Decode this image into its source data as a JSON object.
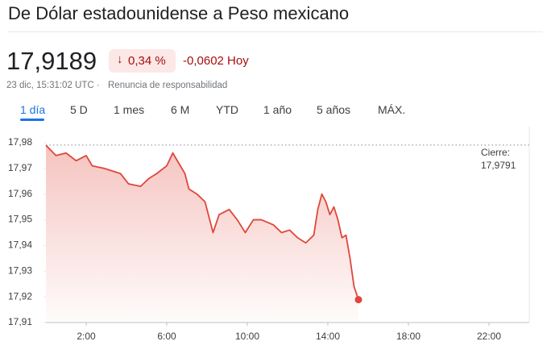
{
  "header": {
    "title": "De Dólar estadounidense a Peso mexicano",
    "price": "17,9189",
    "change_percent": "0,34 %",
    "change_value": "-0,0602 Hoy",
    "timestamp": "23 dic, 15:31:02 UTC ·",
    "disclaimer": "Renuncia de responsabilidad"
  },
  "tabs": [
    "1 día",
    "5 D",
    "1 mes",
    "6 M",
    "YTD",
    "1 año",
    "5 años",
    "MÁX."
  ],
  "chart_data": {
    "type": "line",
    "color": "#e0463a",
    "x": [
      0,
      0.5,
      1.0,
      1.5,
      2.0,
      2.3,
      2.9,
      3.7,
      4.1,
      4.7,
      5.1,
      5.5,
      6.0,
      6.3,
      6.6,
      6.9,
      7.1,
      7.5,
      7.9,
      8.1,
      8.3,
      8.6,
      9.1,
      9.5,
      9.9,
      10.3,
      10.7,
      11.3,
      11.7,
      12.1,
      12.5,
      12.9,
      13.3,
      13.5,
      13.7,
      13.9,
      14.1,
      14.3,
      14.5,
      14.7,
      14.9,
      15.1,
      15.3,
      15.52
    ],
    "values": [
      17.979,
      17.975,
      17.976,
      17.973,
      17.975,
      17.971,
      17.97,
      17.968,
      17.964,
      17.963,
      17.966,
      17.968,
      17.971,
      17.976,
      17.972,
      17.968,
      17.962,
      17.96,
      17.957,
      17.951,
      17.945,
      17.952,
      17.954,
      17.95,
      17.945,
      17.95,
      17.95,
      17.948,
      17.945,
      17.946,
      17.943,
      17.941,
      17.944,
      17.954,
      17.96,
      17.957,
      17.952,
      17.955,
      17.95,
      17.943,
      17.944,
      17.935,
      17.924,
      17.9189
    ],
    "xlim": [
      0,
      24
    ],
    "xticks": [
      {
        "value": 2,
        "label": "2:00"
      },
      {
        "value": 6,
        "label": "6:00"
      },
      {
        "value": 10,
        "label": "10:00"
      },
      {
        "value": 14,
        "label": "14:00"
      },
      {
        "value": 18,
        "label": "18:00"
      },
      {
        "value": 22,
        "label": "22:00"
      }
    ],
    "ylim": [
      17.91,
      17.98
    ],
    "yticks": [
      {
        "value": 17.91,
        "label": "17,91"
      },
      {
        "value": 17.92,
        "label": "17,92"
      },
      {
        "value": 17.93,
        "label": "17,93"
      },
      {
        "value": 17.94,
        "label": "17,94"
      },
      {
        "value": 17.95,
        "label": "17,95"
      },
      {
        "value": 17.96,
        "label": "17,96"
      },
      {
        "value": 17.97,
        "label": "17,97"
      },
      {
        "value": 17.98,
        "label": "17,98"
      }
    ],
    "grid": false,
    "annotation": {
      "label": "Cierre:",
      "value": 17.9791,
      "value_label": "17,9791"
    }
  }
}
